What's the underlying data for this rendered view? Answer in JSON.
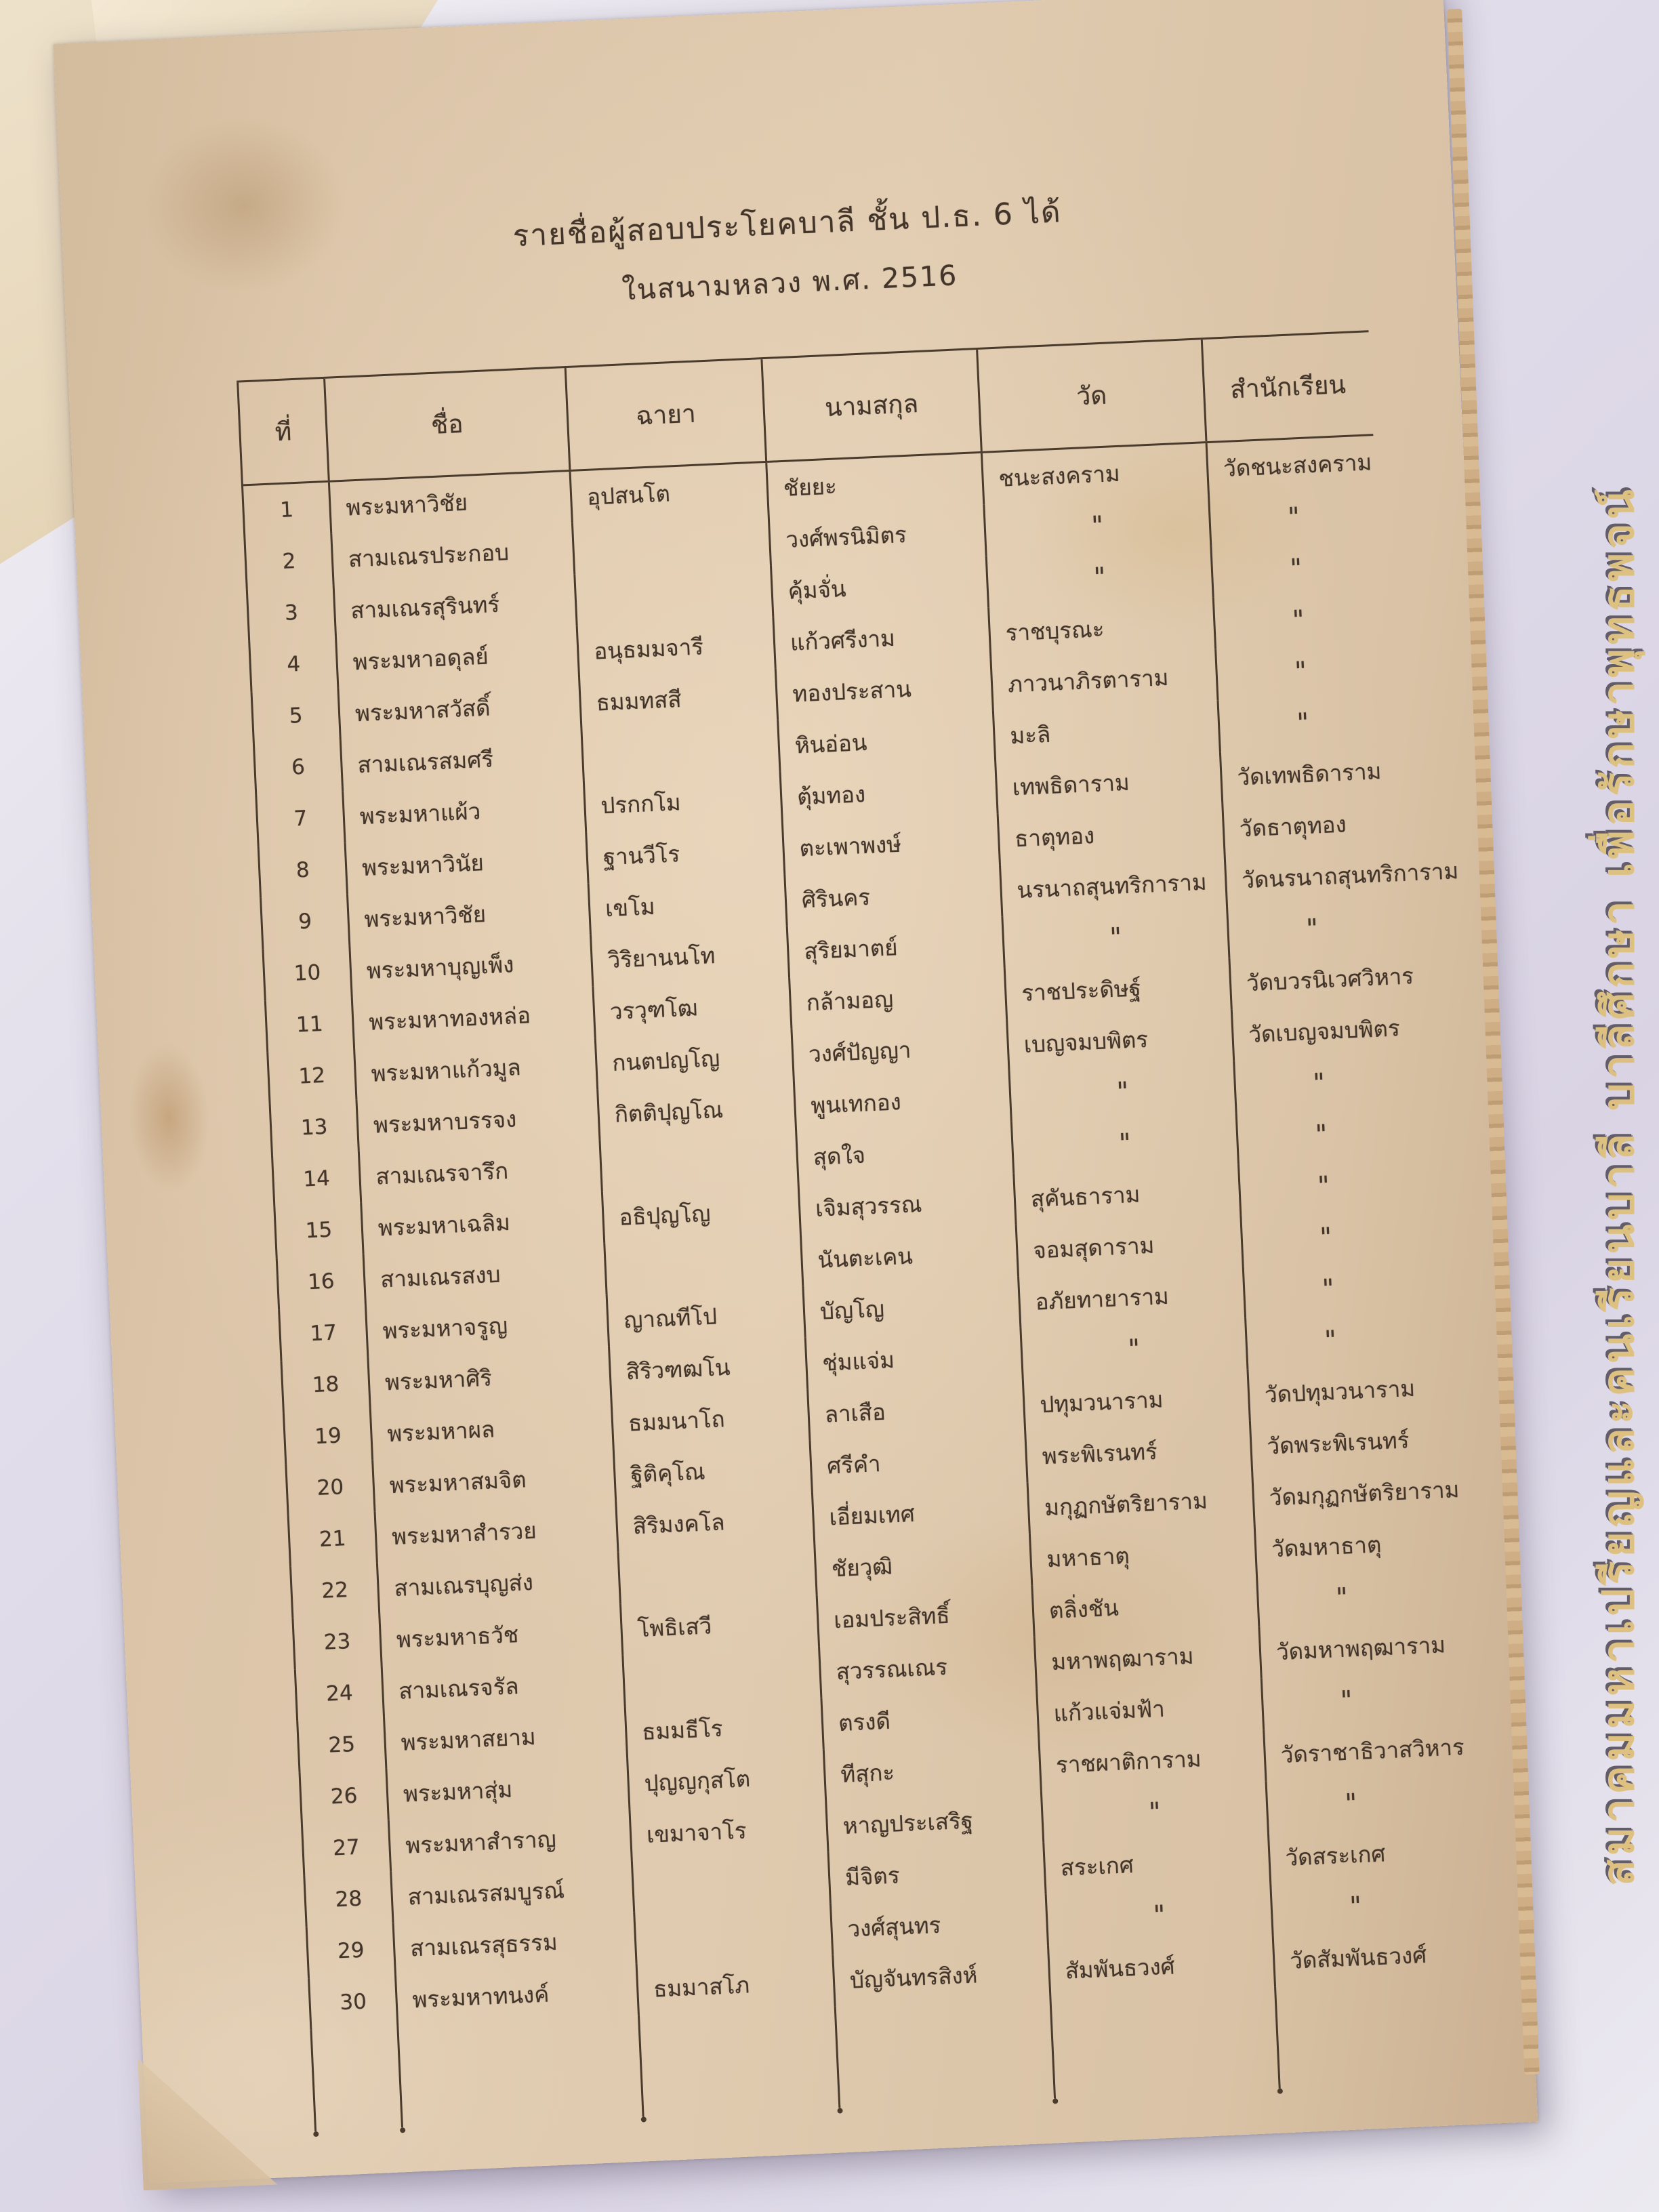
{
  "title": {
    "line1": "รายชื่อผู้สอบประโยคบาลี ชั้น ป.ธ. 6 ได้",
    "line2": "ในสนามหลวง พ.ศ. 2516"
  },
  "watermark": "สมาคมมหาเปรียญและคนเรียนบาลี บาลีศึกษา เพื่อรักษาพุทธพจน์",
  "colors": {
    "paper": "#dcc5a9",
    "background": "#e3dfeb",
    "ink": "#43352a",
    "watermark_gold": "#dec07c"
  },
  "table": {
    "headers": [
      "ที่",
      "ชื่อ",
      "ฉายา",
      "นามสกุล",
      "วัด",
      "สำนักเรียน"
    ],
    "ditto_mark": "\"",
    "rows": [
      {
        "no": "1",
        "name": "พระมหาวิชัย",
        "chaya": "อุปสนโต",
        "surname": "ชัยยะ",
        "temple": "ชนะสงคราม",
        "school": "วัดชนะสงคราม"
      },
      {
        "no": "2",
        "name": "สามเณรประกอบ",
        "chaya": "",
        "surname": "วงศ์พรนิมิตร",
        "temple": "\"",
        "school": "\""
      },
      {
        "no": "3",
        "name": "สามเณรสุรินทร์",
        "chaya": "",
        "surname": "คุ้มจั่น",
        "temple": "\"",
        "school": "\""
      },
      {
        "no": "4",
        "name": "พระมหาอดุลย์",
        "chaya": "อนุธมมจารี",
        "surname": "แก้วศรีงาม",
        "temple": "ราชบุรณะ",
        "school": "\""
      },
      {
        "no": "5",
        "name": "พระมหาสวัสดิ์",
        "chaya": "ธมมทสสี",
        "surname": "ทองประสาน",
        "temple": "ภาวนาภิรตาราม",
        "school": "\""
      },
      {
        "no": "6",
        "name": "สามเณรสมศรี",
        "chaya": "",
        "surname": "หินอ่อน",
        "temple": "มะลิ",
        "school": "\""
      },
      {
        "no": "7",
        "name": "พระมหาแผ้ว",
        "chaya": "ปรกกโม",
        "surname": "ตุ้มทอง",
        "temple": "เทพธิดาราม",
        "school": "วัดเทพธิดาราม"
      },
      {
        "no": "8",
        "name": "พระมหาวินัย",
        "chaya": "ฐานวีโร",
        "surname": "ตะเพาพงษ์",
        "temple": "ธาตุทอง",
        "school": "วัดธาตุทอง"
      },
      {
        "no": "9",
        "name": "พระมหาวิชัย",
        "chaya": "เขโม",
        "surname": "ศิรินคร",
        "temple": "นรนาถสุนทริการาม",
        "school": "วัดนรนาถสุนทริการาม"
      },
      {
        "no": "10",
        "name": "พระมหาบุญเพ็ง",
        "chaya": "วิริยานนโท",
        "surname": "สุริยมาตย์",
        "temple": "\"",
        "school": "\""
      },
      {
        "no": "11",
        "name": "พระมหาทองหล่อ",
        "chaya": "วรวุฑโฒ",
        "surname": "กล้ามอญ",
        "temple": "ราชประดิษฐ์",
        "school": "วัดบวรนิเวศวิหาร"
      },
      {
        "no": "12",
        "name": "พระมหาแก้วมูล",
        "chaya": "กนตปญโญ",
        "surname": "วงศ์ปัญญา",
        "temple": "เบญจมบพิตร",
        "school": "วัดเบญจมบพิตร"
      },
      {
        "no": "13",
        "name": "พระมหาบรรจง",
        "chaya": "กิตติปุญโณ",
        "surname": "พูนเทกอง",
        "temple": "\"",
        "school": "\""
      },
      {
        "no": "14",
        "name": "สามเณรจารึก",
        "chaya": "",
        "surname": "สุดใจ",
        "temple": "\"",
        "school": "\""
      },
      {
        "no": "15",
        "name": "พระมหาเฉลิม",
        "chaya": "อธิปุญโญ",
        "surname": "เจิมสุวรรณ",
        "temple": "สุคันธาราม",
        "school": "\""
      },
      {
        "no": "16",
        "name": "สามเณรสงบ",
        "chaya": "",
        "surname": "นันตะเคน",
        "temple": "จอมสุดาราม",
        "school": "\""
      },
      {
        "no": "17",
        "name": "พระมหาจรูญ",
        "chaya": "ญาณทีโป",
        "surname": "บัญโญ",
        "temple": "อภัยทายาราม",
        "school": "\""
      },
      {
        "no": "18",
        "name": "พระมหาศิริ",
        "chaya": "สิริวฑฒโน",
        "surname": "ชุ่มแจ่ม",
        "temple": "\"",
        "school": "\""
      },
      {
        "no": "19",
        "name": "พระมหาผล",
        "chaya": "ธมมนาโถ",
        "surname": "ลาเสือ",
        "temple": "ปทุมวนาราม",
        "school": "วัดปทุมวนาราม"
      },
      {
        "no": "20",
        "name": "พระมหาสมจิต",
        "chaya": "ฐิติคุโณ",
        "surname": "ศรีคำ",
        "temple": "พระพิเรนทร์",
        "school": "วัดพระพิเรนทร์"
      },
      {
        "no": "21",
        "name": "พระมหาสำรวย",
        "chaya": "สิริมงคโล",
        "surname": "เอี่ยมเทศ",
        "temple": "มกุฏกษัตริยาราม",
        "school": "วัดมกุฏกษัตริยาราม"
      },
      {
        "no": "22",
        "name": "สามเณรบุญส่ง",
        "chaya": "",
        "surname": "ชัยวุฒิ",
        "temple": "มหาธาตุ",
        "school": "วัดมหาธาตุ"
      },
      {
        "no": "23",
        "name": "พระมหาธวัช",
        "chaya": "โพธิเสวี",
        "surname": "เอมประสิทธิ์",
        "temple": "ตลิ่งชัน",
        "school": "\""
      },
      {
        "no": "24",
        "name": "สามเณรจรัล",
        "chaya": "",
        "surname": "สุวรรณเณร",
        "temple": "มหาพฤฒาราม",
        "school": "วัดมหาพฤฒาราม"
      },
      {
        "no": "25",
        "name": "พระมหาสยาม",
        "chaya": "ธมมธีโร",
        "surname": "ตรงดี",
        "temple": "แก้วแจ่มฟ้า",
        "school": "\""
      },
      {
        "no": "26",
        "name": "พระมหาสุ่ม",
        "chaya": "ปุญญกุสโต",
        "surname": "ทีสุกะ",
        "temple": "ราชผาติการาม",
        "school": "วัดราชาธิวาสวิหาร"
      },
      {
        "no": "27",
        "name": "พระมหาสำราญ",
        "chaya": "เขมาจาโร",
        "surname": "หาญประเสริฐ",
        "temple": "\"",
        "school": "\""
      },
      {
        "no": "28",
        "name": "สามเณรสมบูรณ์",
        "chaya": "",
        "surname": "มีจิตร",
        "temple": "สระเกศ",
        "school": "วัดสระเกศ"
      },
      {
        "no": "29",
        "name": "สามเณรสุธรรม",
        "chaya": "",
        "surname": "วงศ์สุนทร",
        "temple": "\"",
        "school": "\""
      },
      {
        "no": "30",
        "name": "พระมหาทนงค์",
        "chaya": "ธมมาสโภ",
        "surname": "บัญจันทรสิงห์",
        "temple": "สัมพันธวงศ์",
        "school": "วัดสัมพันธวงศ์"
      }
    ]
  }
}
